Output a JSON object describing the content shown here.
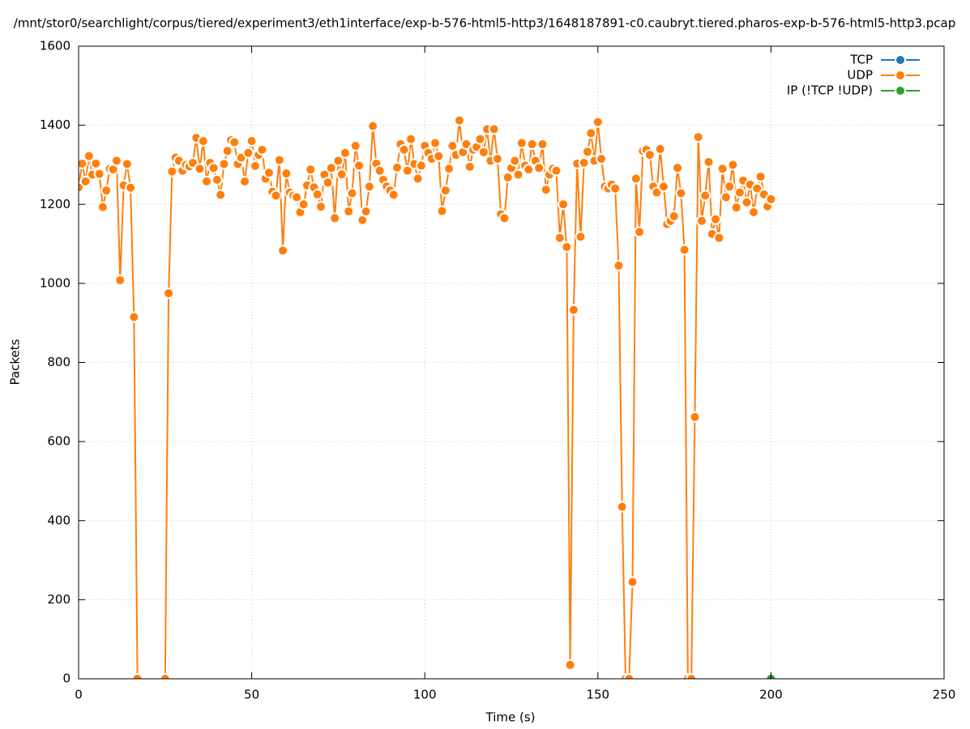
{
  "chart_data": {
    "type": "line",
    "title": "/mnt/stor0/searchlight/corpus/tiered/experiment3/eth1interface/exp-b-576-html5-http3/1648187891-c0.caubryt.tiered.pharos-exp-b-576-html5-http3.pcap",
    "xlabel": "Time (s)",
    "ylabel": "Packets",
    "xlim": [
      0,
      250
    ],
    "xticks": [
      0,
      50,
      100,
      150,
      200,
      250
    ],
    "ylim": [
      0,
      1600
    ],
    "yticks": [
      0,
      200,
      400,
      600,
      800,
      1000,
      1200,
      1400,
      1600
    ],
    "grid": true,
    "legend": "top-right",
    "series": [
      {
        "name": "TCP",
        "color": "#1f77b4",
        "x": [],
        "values": []
      },
      {
        "name": "UDP",
        "color": "#ff7f0e",
        "x": [
          0,
          1,
          2,
          3,
          4,
          5,
          6,
          7,
          8,
          9,
          10,
          11,
          12,
          13,
          14,
          15,
          16,
          17,
          18,
          19,
          20,
          21,
          22,
          23,
          24,
          25,
          26,
          27,
          28,
          29,
          30,
          31,
          32,
          33,
          34,
          35,
          36,
          37,
          38,
          39,
          40,
          41,
          42,
          43,
          44,
          45,
          46,
          47,
          48,
          49,
          50,
          51,
          52,
          53,
          54,
          55,
          56,
          57,
          58,
          59,
          60,
          61,
          62,
          63,
          64,
          65,
          66,
          67,
          68,
          69,
          70,
          71,
          72,
          73,
          74,
          75,
          76,
          77,
          78,
          79,
          80,
          81,
          82,
          83,
          84,
          85,
          86,
          87,
          88,
          89,
          90,
          91,
          92,
          93,
          94,
          95,
          96,
          97,
          98,
          99,
          100,
          101,
          102,
          103,
          104,
          105,
          106,
          107,
          108,
          109,
          110,
          111,
          112,
          113,
          114,
          115,
          116,
          117,
          118,
          119,
          120,
          121,
          122,
          123,
          124,
          125,
          126,
          127,
          128,
          129,
          130,
          131,
          132,
          133,
          134,
          135,
          136,
          137,
          138,
          139,
          140,
          141,
          142,
          143,
          144,
          145,
          146,
          147,
          148,
          149,
          150,
          151,
          152,
          153,
          154,
          155,
          156,
          157,
          158,
          159,
          160,
          161,
          162,
          163,
          164,
          165,
          166,
          167,
          168,
          169,
          170,
          171,
          172,
          173,
          174,
          175,
          176,
          177,
          178,
          179,
          180,
          181,
          182,
          183,
          184,
          185,
          186,
          187,
          188,
          189,
          190,
          191,
          192,
          193,
          194,
          195,
          196,
          197,
          198,
          199,
          200
        ],
        "values": [
          1243,
          1303,
          1258,
          1322,
          1275,
          1303,
          1277,
          1193,
          1235,
          1290,
          1288,
          1310,
          1008,
          1248,
          1302,
          1242,
          915,
          0,
          null,
          null,
          null,
          null,
          null,
          null,
          null,
          0,
          975,
          1283,
          1318,
          1310,
          1285,
          1300,
          1296,
          1305,
          1368,
          1290,
          1360,
          1258,
          1305,
          1292,
          1262,
          1224,
          1302,
          1335,
          1362,
          1357,
          1302,
          1318,
          1258,
          1330,
          1360,
          1297,
          1325,
          1338,
          1265,
          1280,
          1232,
          1222,
          1312,
          1083,
          1278,
          1230,
          1222,
          1218,
          1180,
          1200,
          1248,
          1288,
          1243,
          1225,
          1194,
          1275,
          1255,
          1292,
          1165,
          1310,
          1276,
          1330,
          1182,
          1228,
          1348,
          1298,
          1160,
          1182,
          1245,
          1398,
          1303,
          1285,
          1262,
          1245,
          1235,
          1224,
          1293,
          1352,
          1338,
          1285,
          1365,
          1302,
          1265,
          1298,
          1348,
          1330,
          1315,
          1355,
          1322,
          1183,
          1235,
          1290,
          1348,
          1325,
          1412,
          1332,
          1352,
          1295,
          1338,
          1345,
          1365,
          1332,
          1390,
          1310,
          1390,
          1315,
          1175,
          1165,
          1268,
          1292,
          1310,
          1275,
          1355,
          1298,
          1288,
          1352,
          1310,
          1292,
          1352,
          1237,
          1275,
          1290,
          1285,
          1115,
          1200,
          1092,
          35,
          933,
          1303,
          1118,
          1305,
          1333,
          1380,
          1310,
          1408,
          1315,
          1245,
          1240,
          1250,
          1240,
          1045,
          435,
          0,
          0,
          245,
          1265,
          1130,
          1335,
          1338,
          1325,
          1245,
          1230,
          1340,
          1245,
          1150,
          1158,
          1170,
          1292,
          1228,
          1085,
          0,
          0,
          662,
          1370,
          1158,
          1222,
          1307,
          1125,
          1162,
          1115,
          1290,
          1218,
          1245,
          1300,
          1192,
          1230,
          1260,
          1205,
          1250,
          1180,
          1240,
          1270,
          1225,
          1195,
          1213
        ]
      },
      {
        "name": "IP (!TCP  !UDP)",
        "color": "#2ca02c",
        "x": [
          200
        ],
        "values": [
          0
        ]
      }
    ]
  }
}
